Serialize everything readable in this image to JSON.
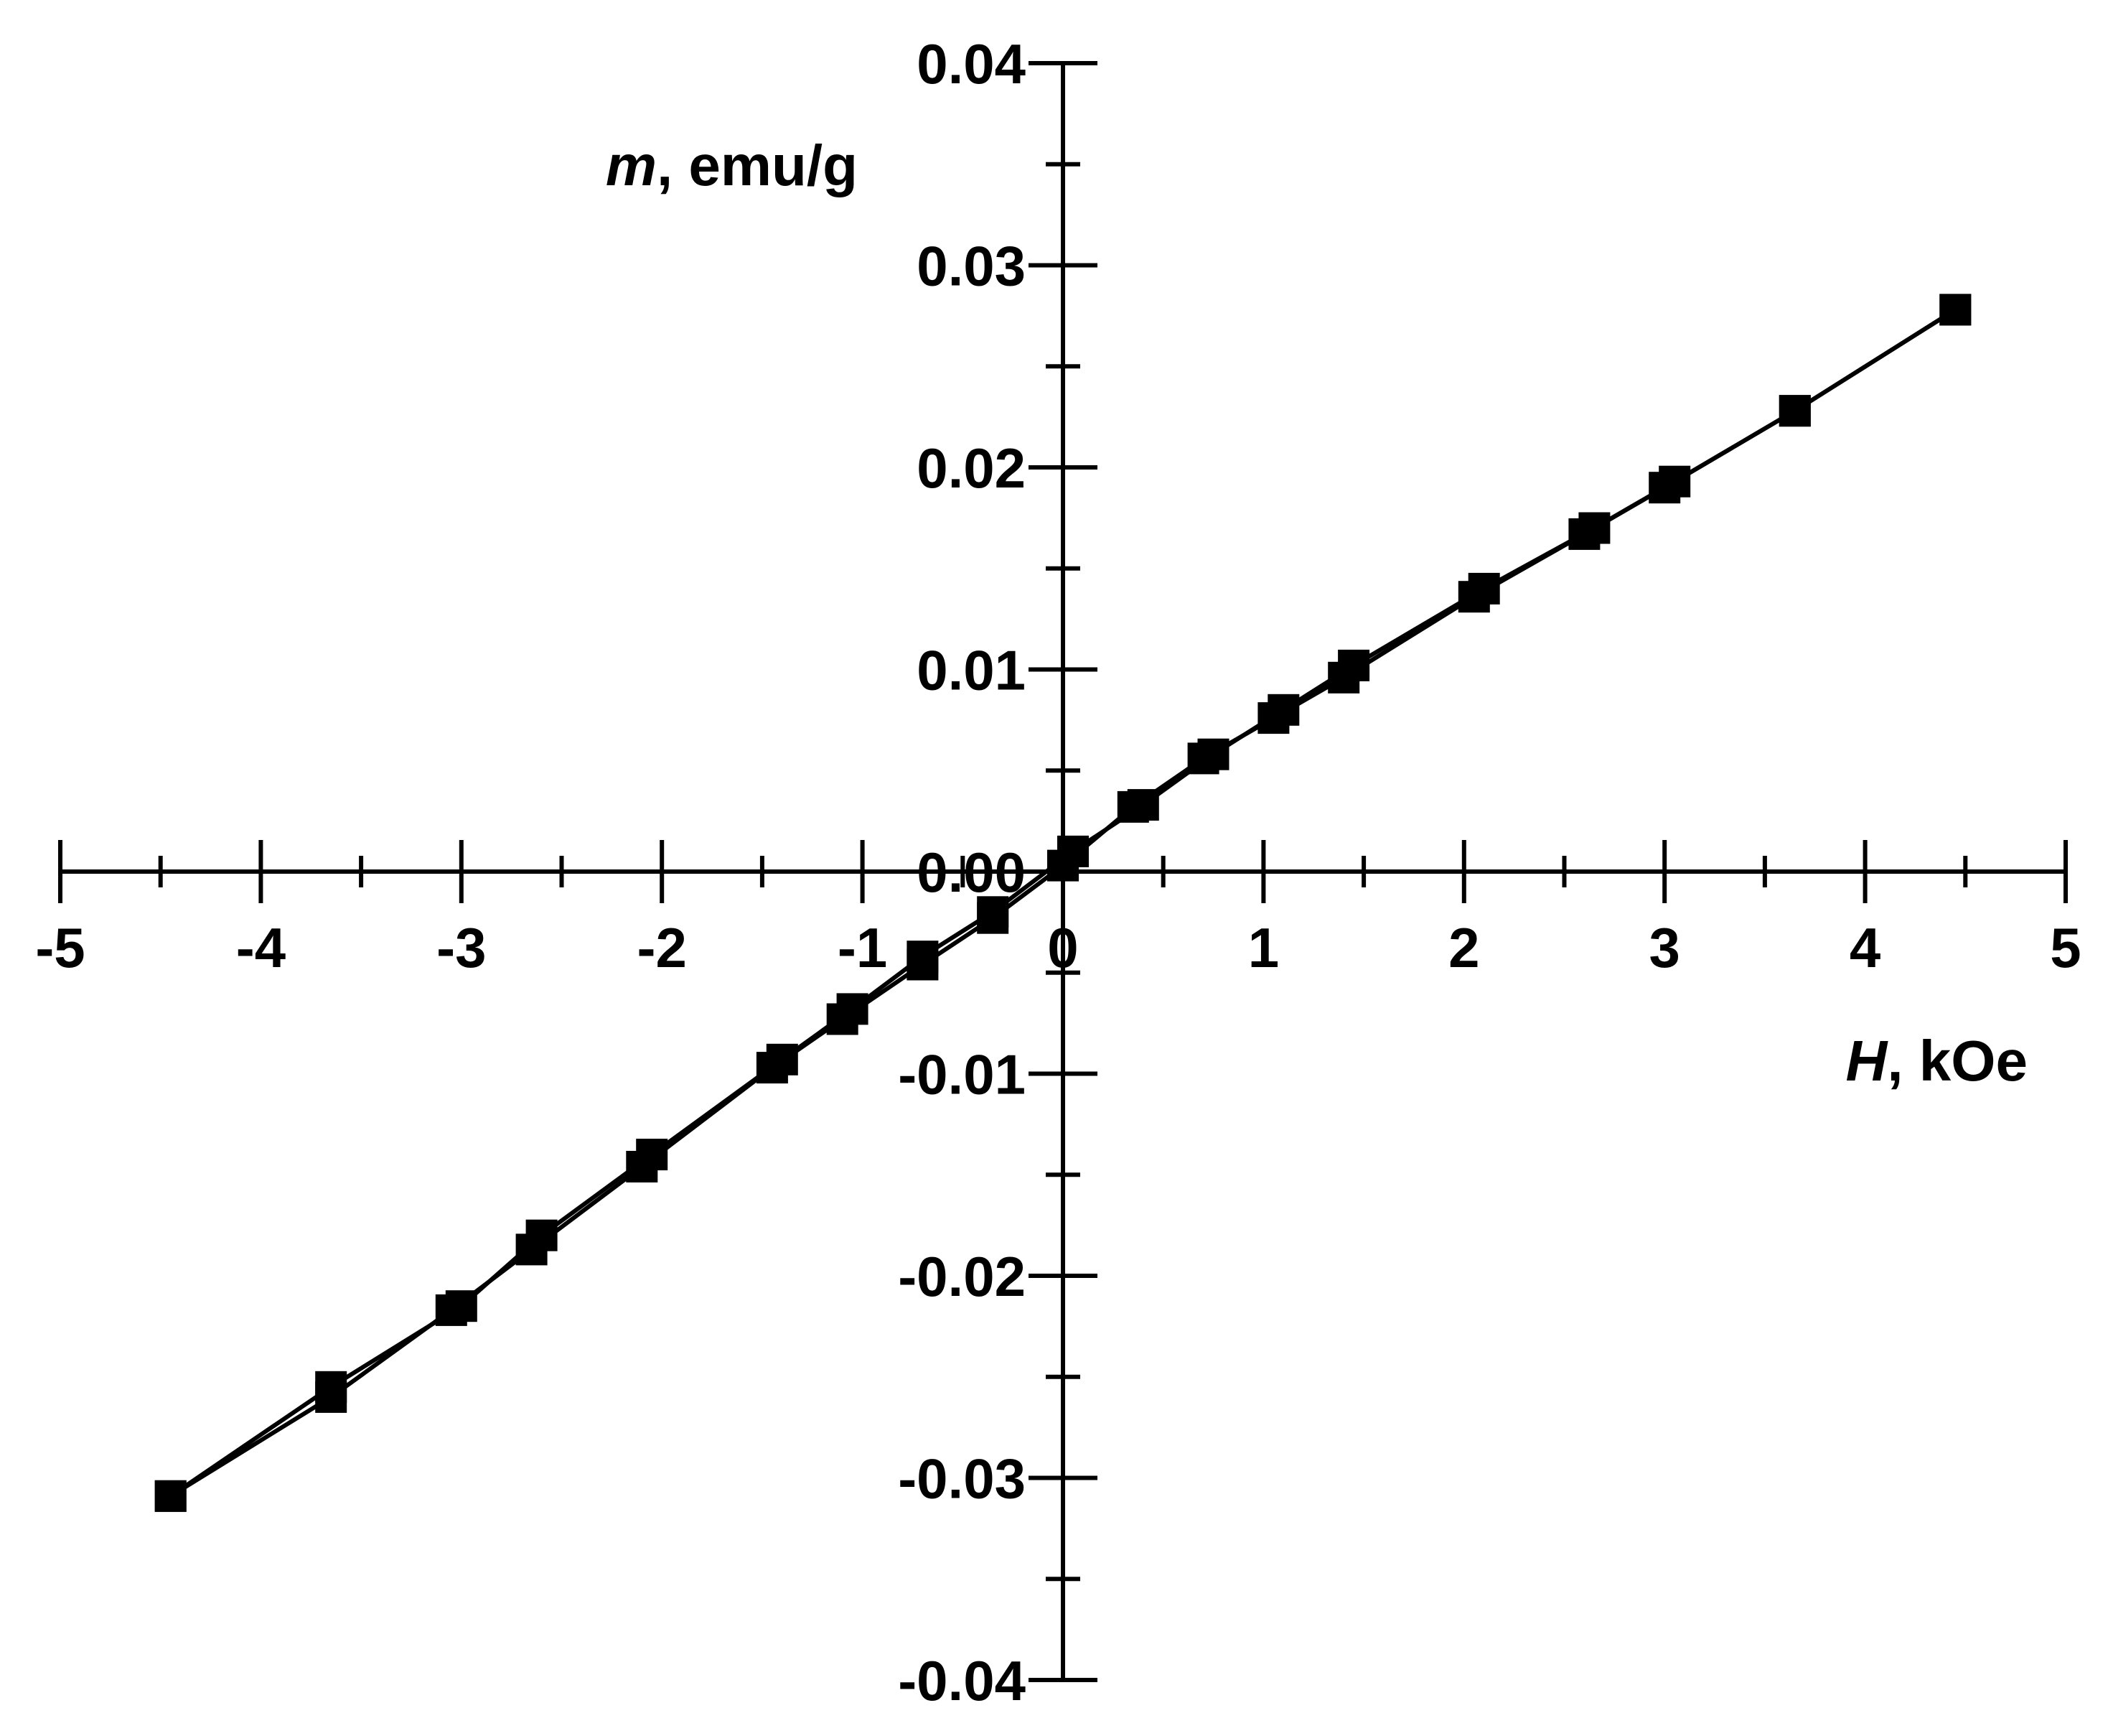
{
  "chart_data": {
    "type": "line",
    "xlabel": {
      "var": "H",
      "unit": ", kOe"
    },
    "ylabel": {
      "var": "m",
      "unit": ", emu/g"
    },
    "xlim": [
      -5,
      5
    ],
    "ylim": [
      -0.04,
      0.04
    ],
    "x_major_ticks": [
      -5,
      -4,
      -3,
      -2,
      -1,
      0,
      1,
      2,
      3,
      4,
      5
    ],
    "x_tick_labels": [
      "-5",
      "-4",
      "-3",
      "-2",
      "-1",
      "0",
      "1",
      "2",
      "3",
      "4",
      "5"
    ],
    "x_minor_ticks": [
      -4.5,
      -3.5,
      -2.5,
      -1.5,
      -0.5,
      0.5,
      1.5,
      2.5,
      3.5,
      4.5
    ],
    "y_major_ticks": [
      0.04,
      0.03,
      0.02,
      0.01,
      0.0,
      -0.01,
      -0.02,
      -0.03,
      -0.04
    ],
    "y_tick_labels": [
      "0.04",
      "0.03",
      "0.02",
      "0.01",
      "0.00",
      "-0.01",
      "-0.02",
      "-0.03",
      "-0.04"
    ],
    "y_minor_ticks": [
      0.035,
      0.025,
      0.015,
      0.005,
      -0.005,
      -0.015,
      -0.025,
      -0.035
    ],
    "grid": false,
    "legend": "none",
    "marker": "filled-square",
    "color": "#000000",
    "series": [
      {
        "x": [
          4.45,
          3.65,
          3.0,
          2.6,
          2.05,
          1.4,
          1.05,
          0.7,
          0.35,
          0.0,
          -0.35,
          -0.7,
          -1.1,
          -1.45,
          -2.1,
          -2.65,
          -3.05,
          -3.65,
          -4.45
        ],
        "y": [
          0.0278,
          0.0228,
          0.019,
          0.0167,
          0.0136,
          0.0096,
          0.0076,
          0.0056,
          0.0032,
          0.0003,
          -0.0023,
          -0.0046,
          -0.0073,
          -0.0097,
          -0.0146,
          -0.0187,
          -0.0217,
          -0.026,
          -0.0309
        ]
      },
      {
        "x": [
          -4.45,
          -3.65,
          -3.0,
          -2.6,
          -2.05,
          -1.4,
          -1.05,
          -0.7,
          -0.35,
          0.05,
          0.4,
          0.75,
          1.1,
          1.45,
          2.1,
          2.65,
          3.05,
          3.65,
          4.45
        ],
        "y": [
          -0.0309,
          -0.0255,
          -0.0215,
          -0.018,
          -0.014,
          -0.0093,
          -0.0068,
          -0.0042,
          -0.002,
          0.001,
          0.0033,
          0.0058,
          0.008,
          0.0102,
          0.014,
          0.017,
          0.0193,
          0.0228,
          0.0278
        ]
      }
    ]
  }
}
